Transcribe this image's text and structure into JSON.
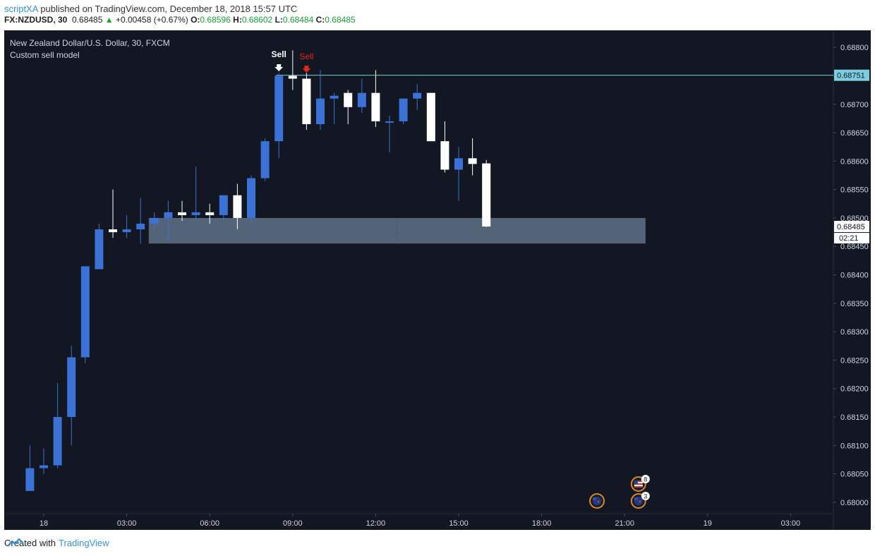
{
  "header": {
    "author": "scriptXA",
    "published_text": "published on TradingView.com, December 18, 2018 15:57 UTC",
    "symbol": "FX:NZDUSD, 30",
    "last": "0.68485",
    "change_arrow": "▲",
    "change": "+0.00458 (+0.67%)",
    "o_label": "O:",
    "o_value": "0.68596",
    "h_label": "H:",
    "h_value": "0.68602",
    "l_label": "L:",
    "l_value": "0.68484",
    "c_label": "C:",
    "c_value": "0.68485"
  },
  "chart_data": {
    "type": "candlestick",
    "title": "New Zealand Dollar/U.S. Dollar, 30, FXCM",
    "subtitle": "Custom sell model",
    "ylim": [
      0.6798,
      0.6883
    ],
    "y_ticks": [
      "0.68800",
      "0.68750",
      "0.68700",
      "0.68650",
      "0.68600",
      "0.68550",
      "0.68500",
      "0.68450",
      "0.68400",
      "0.68350",
      "0.68300",
      "0.68250",
      "0.68200",
      "0.68150",
      "0.68100",
      "0.68050",
      "0.68000"
    ],
    "x_ticks": [
      "18",
      "03:00",
      "06:00",
      "09:00",
      "12:00",
      "15:00",
      "18:00",
      "21:00",
      "19",
      "03:00"
    ],
    "candles": [
      {
        "time": "17 23:30",
        "open": 0.6802,
        "high": 0.681,
        "low": 0.6802,
        "close": 0.6806
      },
      {
        "time": "18 00:00",
        "open": 0.6806,
        "high": 0.68095,
        "low": 0.6805,
        "close": 0.68065
      },
      {
        "time": "18 00:30",
        "open": 0.68065,
        "high": 0.6821,
        "low": 0.6806,
        "close": 0.6815
      },
      {
        "time": "18 01:00",
        "open": 0.6815,
        "high": 0.68275,
        "low": 0.681,
        "close": 0.68255
      },
      {
        "time": "18 01:30",
        "open": 0.68255,
        "high": 0.68415,
        "low": 0.68245,
        "close": 0.68415
      },
      {
        "time": "18 02:00",
        "open": 0.6841,
        "high": 0.6849,
        "low": 0.6841,
        "close": 0.6848
      },
      {
        "time": "18 02:30",
        "open": 0.6848,
        "high": 0.6855,
        "low": 0.68465,
        "close": 0.68475
      },
      {
        "time": "18 03:00",
        "open": 0.68475,
        "high": 0.68505,
        "low": 0.68465,
        "close": 0.6848
      },
      {
        "time": "18 03:30",
        "open": 0.6848,
        "high": 0.68535,
        "low": 0.68455,
        "close": 0.6849
      },
      {
        "time": "18 04:00",
        "open": 0.6849,
        "high": 0.6851,
        "low": 0.6848,
        "close": 0.685
      },
      {
        "time": "18 04:30",
        "open": 0.685,
        "high": 0.6853,
        "low": 0.6846,
        "close": 0.6851
      },
      {
        "time": "18 05:00",
        "open": 0.6851,
        "high": 0.6853,
        "low": 0.68495,
        "close": 0.68505
      },
      {
        "time": "18 05:30",
        "open": 0.68505,
        "high": 0.6859,
        "low": 0.68495,
        "close": 0.6851
      },
      {
        "time": "18 06:00",
        "open": 0.6851,
        "high": 0.68525,
        "low": 0.6849,
        "close": 0.68505
      },
      {
        "time": "18 06:30",
        "open": 0.68505,
        "high": 0.6854,
        "low": 0.68495,
        "close": 0.6854
      },
      {
        "time": "18 07:00",
        "open": 0.6854,
        "high": 0.6856,
        "low": 0.6848,
        "close": 0.685
      },
      {
        "time": "18 07:30",
        "open": 0.685,
        "high": 0.68575,
        "low": 0.6849,
        "close": 0.6857
      },
      {
        "time": "18 08:00",
        "open": 0.6857,
        "high": 0.6864,
        "low": 0.68565,
        "close": 0.68635
      },
      {
        "time": "18 08:30",
        "open": 0.68635,
        "high": 0.68755,
        "low": 0.68605,
        "close": 0.6875
      },
      {
        "time": "18 09:00",
        "open": 0.6875,
        "high": 0.68795,
        "low": 0.68725,
        "close": 0.68745
      },
      {
        "time": "18 09:30",
        "open": 0.68745,
        "high": 0.68755,
        "low": 0.68655,
        "close": 0.68665
      },
      {
        "time": "18 10:00",
        "open": 0.68665,
        "high": 0.6876,
        "low": 0.68655,
        "close": 0.6871
      },
      {
        "time": "18 10:30",
        "open": 0.6871,
        "high": 0.6872,
        "low": 0.68665,
        "close": 0.68715
      },
      {
        "time": "18 11:00",
        "open": 0.6872,
        "high": 0.68725,
        "low": 0.68665,
        "close": 0.68695
      },
      {
        "time": "18 11:30",
        "open": 0.68695,
        "high": 0.68745,
        "low": 0.68685,
        "close": 0.6872
      },
      {
        "time": "18 12:00",
        "open": 0.6872,
        "high": 0.6876,
        "low": 0.6866,
        "close": 0.6867
      },
      {
        "time": "18 12:30",
        "open": 0.6867,
        "high": 0.6868,
        "low": 0.68615,
        "close": 0.6867
      },
      {
        "time": "18 13:00",
        "open": 0.6867,
        "high": 0.6871,
        "low": 0.68665,
        "close": 0.6871
      },
      {
        "time": "18 13:30",
        "open": 0.6871,
        "high": 0.68735,
        "low": 0.6869,
        "close": 0.6872
      },
      {
        "time": "18 14:00",
        "open": 0.6872,
        "high": 0.6872,
        "low": 0.68635,
        "close": 0.68635
      },
      {
        "time": "18 14:30",
        "open": 0.68635,
        "high": 0.6867,
        "low": 0.6858,
        "close": 0.68585
      },
      {
        "time": "18 15:00",
        "open": 0.68585,
        "high": 0.68625,
        "low": 0.6853,
        "close": 0.68605
      },
      {
        "time": "18 15:30",
        "open": 0.68605,
        "high": 0.6864,
        "low": 0.68575,
        "close": 0.68595
      },
      {
        "time": "18 16:00",
        "open": 0.68596,
        "high": 0.68602,
        "low": 0.68484,
        "close": 0.68485
      }
    ],
    "zone": {
      "from_time": "18 04:00",
      "to_time": "18 21:30",
      "top": 0.685,
      "bottom": 0.68455
    },
    "hline": {
      "value": 0.68751,
      "label": "0.68751"
    },
    "last_price": {
      "value": 0.68485,
      "label": "0.68485",
      "countdown": "02:21"
    },
    "signals": [
      {
        "time": "18 08:30",
        "label": "Sell",
        "color": "#ffffff"
      },
      {
        "time": "18 09:30",
        "label": "Sell",
        "color": "#e0281e"
      }
    ],
    "events": [
      {
        "time": "18 20:00",
        "country": "NZ",
        "count": ""
      },
      {
        "time": "18 21:30",
        "country": "US",
        "count": "8"
      },
      {
        "time": "18 21:30",
        "country": "NZ",
        "count": "3"
      }
    ],
    "colors": {
      "background": "#131722",
      "up": "#3a72d8",
      "down": "#ffffff",
      "zone": "#5a6b80",
      "hline": "#7ccde0",
      "text": "#d1d4dc",
      "axis_line": "#2a2e39"
    }
  },
  "footer": {
    "created_with": "Created with",
    "brand": "TradingView"
  }
}
